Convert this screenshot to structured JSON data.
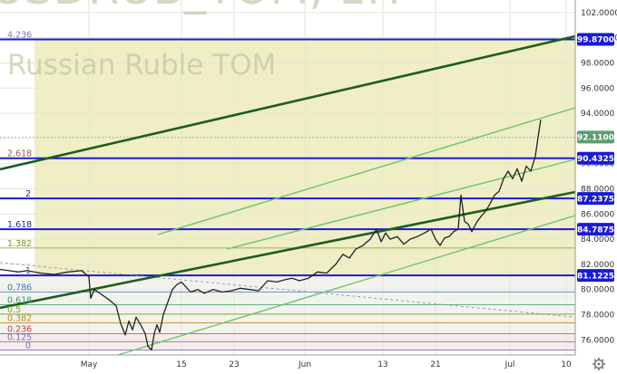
{
  "chart_data": {
    "type": "line",
    "watermark": {
      "symbol_line": "USDRUB_TOM, 1H",
      "description": "Russian Ruble TOM"
    },
    "price_axis": {
      "ticks": [
        "102.0000",
        "100.0000",
        "98.0000",
        "96.0000",
        "94.0000",
        "92.0000",
        "90.0000",
        "88.0000",
        "86.0000",
        "84.0000",
        "82.0000",
        "80.0000",
        "78.0000",
        "76.0000"
      ],
      "ylim": [
        74.8,
        103.0
      ]
    },
    "time_axis": {
      "ticks": [
        "May",
        "15",
        "23",
        "Jun",
        "13",
        "21",
        "Jul",
        "10"
      ]
    },
    "price_tags": [
      {
        "label": "99.8700",
        "value": 99.87,
        "color": "#1a1ad6"
      },
      {
        "label": "92.1100",
        "value": 92.11,
        "color": "#5c9e72"
      },
      {
        "label": "90.4325",
        "value": 90.4325,
        "color": "#1a1ad6"
      },
      {
        "label": "87.2375",
        "value": 87.2375,
        "color": "#1a1ad6"
      },
      {
        "label": "84.7875",
        "value": 84.7875,
        "color": "#1a1ad6"
      },
      {
        "label": "81.1225",
        "value": 81.1225,
        "color": "#1a1ad6"
      }
    ],
    "fib_levels": [
      {
        "label": "4.236",
        "value": 99.87,
        "color": "#7a7acc"
      },
      {
        "label": "2.618",
        "value": 90.4325,
        "color": "#a06040"
      },
      {
        "label": "2",
        "value": 87.2375,
        "color": "#2a2a9a"
      },
      {
        "label": "1.618",
        "value": 84.7875,
        "color": "#2a2a9a"
      },
      {
        "label": "1.382",
        "value": 83.3,
        "color": "#7a9a20"
      },
      {
        "label": "1",
        "value": 81.1225,
        "color": "#555555"
      },
      {
        "label": "0.786",
        "value": 79.8,
        "color": "#3a7ab0"
      },
      {
        "label": "0.618",
        "value": 78.8,
        "color": "#3a9a6a"
      },
      {
        "label": "0.5",
        "value": 78.05,
        "color": "#7aaa20"
      },
      {
        "label": "0.382",
        "value": 77.35,
        "color": "#c08a20"
      },
      {
        "label": "0.236",
        "value": 76.5,
        "color": "#c04040"
      },
      {
        "label": "0.125",
        "value": 75.85,
        "color": "#7070c0"
      },
      {
        "label": "0",
        "value": 75.2,
        "color": "#7070c0"
      }
    ],
    "series": [
      {
        "x": [
          0,
          10,
          20,
          30,
          45,
          60,
          75,
          90,
          98,
          100,
          104,
          110,
          120,
          128,
          133,
          138,
          142,
          146,
          150,
          155,
          160,
          163,
          167,
          170,
          173,
          176,
          180,
          185,
          190,
          195,
          200,
          205,
          210,
          218,
          225,
          235,
          245,
          255,
          265,
          275,
          285,
          295,
          305,
          315,
          322,
          330,
          340,
          350,
          360,
          370,
          378,
          385,
          392,
          400,
          408,
          415,
          420,
          425,
          430,
          438,
          445,
          452,
          460,
          468,
          475,
          480,
          485,
          490,
          495,
          500,
          505,
          508,
          512,
          516,
          520,
          525,
          530,
          535,
          540,
          545,
          550,
          555,
          560,
          565,
          570,
          575,
          580,
          585,
          590,
          593,
          596
        ],
        "values": [
          81.6,
          81.5,
          81.4,
          81.5,
          81.3,
          81.2,
          81.4,
          81.5,
          81.0,
          79.3,
          80.0,
          79.7,
          79.2,
          78.7,
          77.3,
          76.4,
          77.5,
          76.8,
          77.8,
          77.2,
          76.5,
          75.5,
          75.2,
          76.5,
          77.2,
          76.6,
          78.0,
          79.0,
          80.0,
          80.4,
          80.6,
          80.2,
          79.8,
          80.0,
          79.7,
          80.0,
          79.8,
          79.9,
          80.1,
          80.0,
          79.9,
          80.7,
          80.6,
          80.8,
          80.9,
          80.7,
          80.9,
          81.4,
          81.3,
          82.0,
          82.8,
          82.5,
          83.2,
          83.5,
          84.0,
          84.8,
          83.8,
          84.5,
          84.0,
          84.2,
          83.6,
          84.0,
          84.2,
          84.5,
          84.8,
          84.0,
          83.5,
          84.1,
          84.2,
          84.6,
          84.8,
          87.5,
          85.4,
          85.2,
          84.6,
          85.3,
          85.8,
          86.2,
          86.8,
          87.5,
          87.8,
          88.8,
          89.4,
          88.8,
          89.6,
          88.6,
          89.8,
          89.4,
          90.6,
          92.1,
          93.5
        ]
      }
    ],
    "colors": {
      "candle": "#222222",
      "fib_line": "#1a1ad6",
      "trend_dark": "#1e5c1e",
      "channel_light": "#6fc36f",
      "background_band": "#efeec5"
    }
  }
}
